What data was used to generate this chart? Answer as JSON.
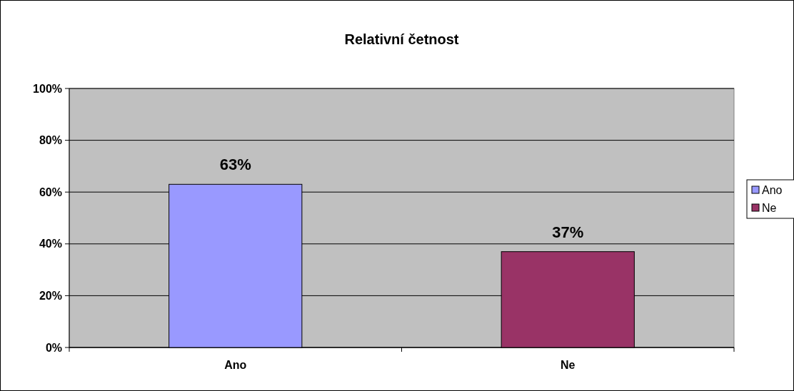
{
  "chart_data": {
    "type": "bar",
    "title": "Relativní četnost",
    "categories": [
      "Ano",
      "Ne"
    ],
    "series": [
      {
        "name": "Ano",
        "color": "#9999ff",
        "values": [
          63,
          null
        ],
        "value_labels": [
          "63%",
          null
        ]
      },
      {
        "name": "Ne",
        "color": "#993366",
        "values": [
          null,
          37
        ],
        "value_labels": [
          null,
          "37%"
        ]
      }
    ],
    "ylim": [
      0,
      100
    ],
    "yticks": [
      {
        "value": 0,
        "label": "0%"
      },
      {
        "value": 20,
        "label": "20%"
      },
      {
        "value": 40,
        "label": "40%"
      },
      {
        "value": 60,
        "label": "60%"
      },
      {
        "value": 80,
        "label": "80%"
      },
      {
        "value": 100,
        "label": "100%"
      }
    ],
    "grid": "y",
    "legend": "right"
  }
}
